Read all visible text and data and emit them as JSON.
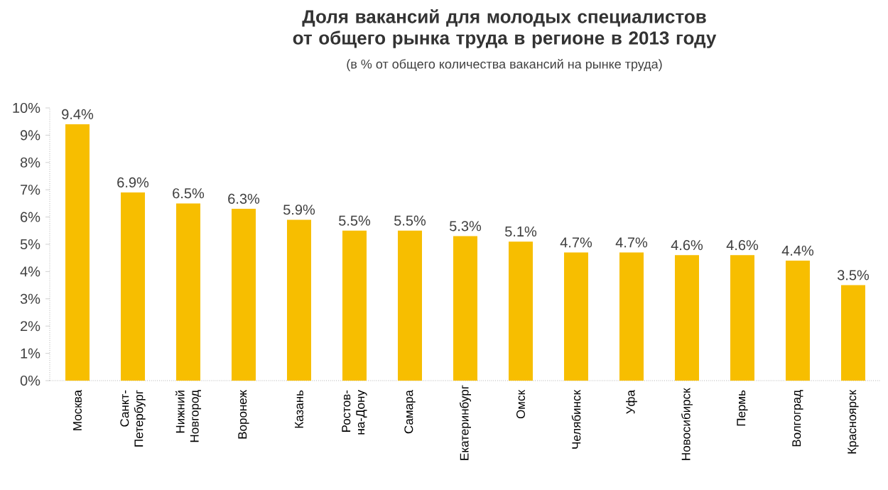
{
  "chart_data": {
    "type": "bar",
    "title": "Доля вакансий для молодых специалистов от общего рынка труда в регионе в 2013 году",
    "subtitle": "(в % от общего количества вакансий на рынке труда)",
    "categories": [
      "Москва",
      "Санкт-Петербург",
      "Нижний Новгород",
      "Воронеж",
      "Казань",
      "Ростов-на-Дону",
      "Самара",
      "Екатеринбург",
      "Омск",
      "Челябинск",
      "Уфа",
      "Новосибирск",
      "Пермь",
      "Волгоград",
      "Красноярск"
    ],
    "values": [
      9.4,
      6.9,
      6.5,
      6.3,
      5.9,
      5.5,
      5.5,
      5.3,
      5.1,
      4.7,
      4.7,
      4.6,
      4.6,
      4.4,
      3.5
    ],
    "value_labels": [
      "9.4%",
      "6.9%",
      "6.5%",
      "6.3%",
      "5.9%",
      "5.5%",
      "5.5%",
      "5.3%",
      "5.1%",
      "4.7%",
      "4.7%",
      "4.6%",
      "4.6%",
      "4.4%",
      "3.5%"
    ],
    "color": "#f7be00",
    "ylim": [
      0,
      10
    ],
    "yticks": [
      {
        "value": 0,
        "label": "0%"
      },
      {
        "value": 1,
        "label": "1%"
      },
      {
        "value": 2,
        "label": "2%"
      },
      {
        "value": 3,
        "label": "3%"
      },
      {
        "value": 4,
        "label": "4%"
      },
      {
        "value": 5,
        "label": "5%"
      },
      {
        "value": 6,
        "label": "6%"
      },
      {
        "value": 7,
        "label": "7%"
      },
      {
        "value": 8,
        "label": "8%"
      },
      {
        "value": 9,
        "label": "9%"
      },
      {
        "value": 10,
        "label": "10%"
      }
    ],
    "grid": false
  }
}
